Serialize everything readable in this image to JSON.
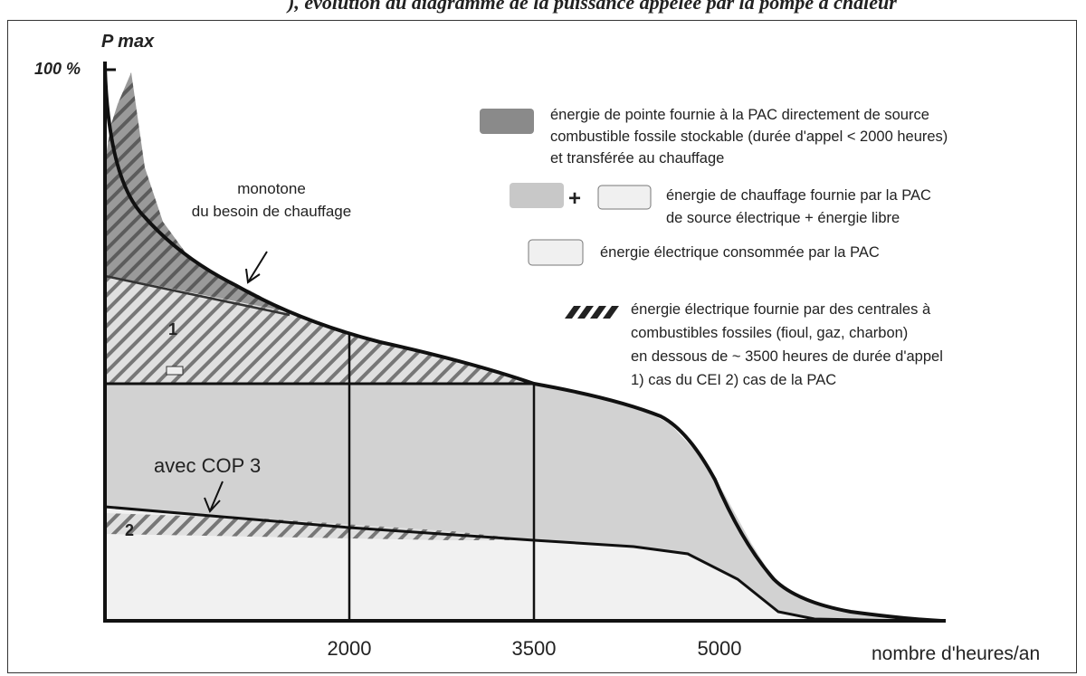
{
  "header_fragment": "), évolution du diagramme de la puissance appelée par la pompe à chaleur",
  "chart_data": {
    "type": "area",
    "title": "",
    "ylabel": "P max",
    "y_top_label": "100 %",
    "xlabel": "nombre d'heures/an",
    "x_ticks": [
      2000,
      3500,
      5000
    ],
    "annotations": {
      "curve_label": [
        "monotone",
        "du besoin de chauffage"
      ],
      "cop_label": "avec COP 3",
      "region_1": "1",
      "region_2": "2"
    },
    "legend": [
      {
        "id": "peak",
        "text": [
          "énergie de pointe fournie à la PAC directement de source",
          "combustible fossile stockable (durée d'appel < 2000 heures)",
          "et transférée au chauffage"
        ],
        "color": "#8a8a8a"
      },
      {
        "id": "heating",
        "plus": "+",
        "text": [
          "énergie de chauffage fournie par la PAC",
          "de source électrique + énergie libre"
        ],
        "color": "#c8c8c8",
        "color2": "#f0f0f0"
      },
      {
        "id": "electric",
        "text": [
          "énergie électrique consommée par la PAC"
        ],
        "color": "#f0f0f0"
      },
      {
        "id": "fossil-plants",
        "text": [
          "énergie électrique fournie par des centrales à",
          "combustibles fossiles (fioul, gaz, charbon)",
          "en dessous de ~ 3500 heures de durée d'appel",
          "1) cas du CEI    2) cas de la  PAC"
        ],
        "color": "#222222"
      }
    ],
    "colors": {
      "peak": "#8a8a8a",
      "heating": "#d2d2d2",
      "electric": "#f1f1f1",
      "hatch": "#555555",
      "outline": "#111111"
    }
  }
}
